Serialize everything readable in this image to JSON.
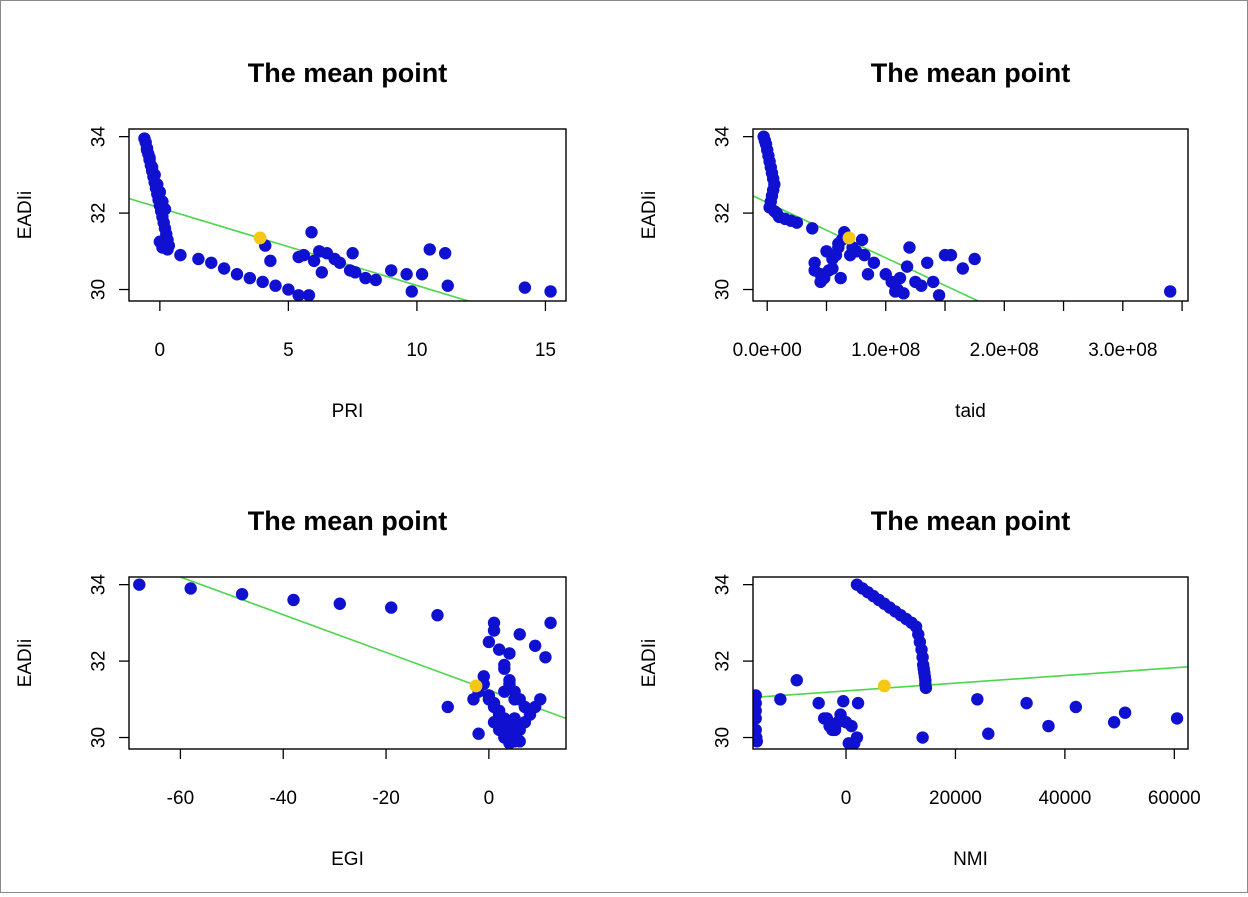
{
  "colors": {
    "points": "#1010d0",
    "mean": "#f5c814",
    "fit": "#4cd64c",
    "axis": "#000000"
  },
  "chart_data": [
    {
      "type": "scatter",
      "title": "The mean point",
      "xlabel": "PRI",
      "ylabel": "EADIi",
      "xlim": [
        -1.2,
        15.8
      ],
      "ylim": [
        29.7,
        34.2
      ],
      "xticks": [
        0,
        5,
        10,
        15
      ],
      "xtick_labels": [
        "0",
        "5",
        "10",
        "15"
      ],
      "yticks": [
        30,
        32,
        34
      ],
      "ytick_labels": [
        "30",
        "32",
        "34"
      ],
      "mean_point": [
        3.9,
        31.35
      ],
      "fit_line": [
        [
          -1.2,
          32.38
        ],
        [
          12.0,
          29.7
        ]
      ],
      "x": [
        -0.6,
        -0.55,
        -0.5,
        -0.45,
        -0.4,
        -0.35,
        -0.3,
        -0.25,
        -0.2,
        -0.15,
        -0.1,
        -0.05,
        0.0,
        0.05,
        0.1,
        0.15,
        0.2,
        0.25,
        0.3,
        0.35,
        -0.5,
        -0.4,
        -0.3,
        -0.2,
        -0.1,
        0.0,
        0.1,
        0.2,
        0.0,
        0.1,
        0.3,
        0.8,
        1.5,
        2.0,
        2.5,
        3.0,
        3.5,
        4.0,
        4.5,
        5.0,
        5.4,
        5.8,
        5.4,
        5.6,
        5.9,
        6.2,
        6.5,
        6.8,
        7.0,
        7.4,
        7.6,
        8.0,
        8.4,
        7.5,
        9.0,
        9.6,
        9.8,
        10.2,
        10.5,
        11.1,
        11.2,
        14.2,
        15.2,
        4.1,
        4.3,
        6.3,
        6.0
      ],
      "y": [
        33.95,
        33.85,
        33.7,
        33.55,
        33.4,
        33.25,
        33.1,
        32.95,
        32.8,
        32.65,
        32.5,
        32.35,
        32.2,
        32.05,
        31.9,
        31.75,
        31.6,
        31.45,
        31.3,
        31.15,
        33.65,
        33.45,
        33.2,
        33.0,
        32.75,
        32.55,
        32.3,
        32.1,
        31.25,
        31.1,
        31.05,
        30.9,
        30.8,
        30.7,
        30.55,
        30.4,
        30.3,
        30.2,
        30.1,
        30.0,
        29.85,
        29.85,
        30.85,
        30.9,
        31.5,
        31.0,
        30.95,
        30.8,
        30.7,
        30.5,
        30.45,
        30.3,
        30.25,
        30.95,
        30.5,
        30.4,
        29.95,
        30.4,
        31.05,
        30.95,
        30.1,
        30.05,
        29.95,
        31.15,
        30.75,
        30.45,
        30.75
      ]
    },
    {
      "type": "scatter",
      "title": "The mean point",
      "xlabel": "taid",
      "ylabel": "EADIi",
      "xlim": [
        -12000000,
        355000000
      ],
      "ylim": [
        29.7,
        34.2
      ],
      "xticks": [
        0,
        50000000,
        100000000,
        150000000,
        200000000,
        250000000,
        300000000,
        350000000
      ],
      "xtick_labels": [
        "0.0e+00",
        "",
        "1.0e+08",
        "",
        "2.0e+08",
        "",
        "3.0e+08",
        ""
      ],
      "yticks": [
        30,
        32,
        34
      ],
      "ytick_labels": [
        "30",
        "32",
        "34"
      ],
      "mean_point": [
        69000000,
        31.35
      ],
      "fit_line": [
        [
          -12000000,
          32.45
        ],
        [
          178000000,
          29.7
        ]
      ],
      "x": [
        -3000000,
        -2000000,
        -1000000,
        0,
        1000000,
        2000000,
        3000000,
        4000000,
        5000000,
        6000000,
        5000000,
        4000000,
        3000000,
        2000000,
        6000000,
        8000000,
        10000000,
        15000000,
        20000000,
        25000000,
        38000000,
        40000000,
        45000000,
        48000000,
        52000000,
        55000000,
        58000000,
        60000000,
        62000000,
        63000000,
        65000000,
        70000000,
        72000000,
        75000000,
        80000000,
        82000000,
        85000000,
        90000000,
        100000000,
        105000000,
        108000000,
        110000000,
        112000000,
        115000000,
        118000000,
        120000000,
        125000000,
        130000000,
        135000000,
        140000000,
        145000000,
        150000000,
        155000000,
        165000000,
        175000000,
        340000000,
        40000000,
        45000000,
        50000000,
        55000000,
        60000000
      ],
      "y": [
        34.0,
        33.9,
        33.8,
        33.65,
        33.5,
        33.35,
        33.2,
        33.05,
        32.9,
        32.75,
        32.6,
        32.45,
        32.3,
        32.15,
        32.05,
        32.0,
        31.9,
        31.85,
        31.8,
        31.75,
        31.6,
        30.5,
        30.4,
        30.3,
        30.5,
        30.55,
        30.9,
        31.2,
        30.3,
        31.3,
        31.5,
        30.9,
        31.1,
        31.0,
        31.3,
        30.9,
        30.4,
        30.7,
        30.4,
        30.2,
        29.95,
        30.0,
        30.3,
        29.9,
        30.6,
        31.1,
        30.2,
        30.1,
        30.7,
        30.2,
        29.85,
        30.9,
        30.9,
        30.55,
        30.8,
        29.95,
        30.7,
        30.2,
        31.0,
        30.8,
        31.1
      ]
    },
    {
      "type": "scatter",
      "title": "The mean point",
      "xlabel": "EGI",
      "ylabel": "EADIi",
      "xlim": [
        -70,
        15
      ],
      "ylim": [
        29.7,
        34.2
      ],
      "xticks": [
        -60,
        -40,
        -20,
        0
      ],
      "xtick_labels": [
        "-60",
        "-40",
        "-20",
        "0"
      ],
      "yticks": [
        30,
        32,
        34
      ],
      "ytick_labels": [
        "30",
        "32",
        "34"
      ],
      "mean_point": [
        -2.5,
        31.35
      ],
      "fit_line": [
        [
          -60,
          34.2
        ],
        [
          15,
          30.5
        ]
      ],
      "x": [
        -68,
        -58,
        -48,
        -38,
        -29,
        -19,
        -10,
        -8,
        -3,
        -2,
        -1,
        0,
        1,
        2,
        3,
        4,
        5,
        6,
        7,
        8,
        9,
        10,
        11,
        12,
        -1,
        0,
        1,
        2,
        3,
        4,
        5,
        6,
        0,
        1,
        2,
        3,
        4,
        5,
        6,
        1,
        2,
        3,
        4,
        5,
        6,
        7,
        3,
        4,
        5,
        2,
        3,
        4,
        5,
        3,
        4,
        -2,
        1,
        6,
        9
      ],
      "y": [
        34.0,
        33.9,
        33.75,
        33.6,
        33.5,
        33.4,
        33.2,
        30.8,
        31.0,
        31.2,
        31.4,
        31.1,
        30.9,
        30.7,
        30.5,
        30.3,
        30.1,
        30.2,
        30.4,
        30.6,
        30.8,
        31.0,
        32.1,
        33.0,
        31.6,
        31.0,
        30.8,
        30.6,
        30.4,
        30.2,
        30.0,
        29.9,
        32.5,
        32.8,
        32.3,
        31.9,
        31.5,
        31.2,
        31.0,
        30.4,
        30.2,
        30.0,
        29.85,
        29.9,
        30.3,
        30.8,
        31.8,
        31.4,
        31.0,
        30.6,
        30.3,
        30.0,
        30.5,
        31.2,
        32.2,
        30.1,
        33.0,
        32.7,
        32.4
      ]
    },
    {
      "type": "scatter",
      "title": "The mean point",
      "xlabel": "NMI",
      "ylabel": "EADIi",
      "xlim": [
        -17000,
        62500
      ],
      "ylim": [
        29.7,
        34.2
      ],
      "xticks": [
        0,
        20000,
        40000,
        60000
      ],
      "xtick_labels": [
        "0",
        "20000",
        "40000",
        "60000"
      ],
      "yticks": [
        30,
        32,
        34
      ],
      "ytick_labels": [
        "30",
        "32",
        "34"
      ],
      "mean_point": [
        7000,
        31.35
      ],
      "fit_line": [
        [
          -17000,
          31.05
        ],
        [
          62500,
          31.85
        ]
      ],
      "x": [
        2000,
        3000,
        4000,
        5000,
        6000,
        7000,
        8000,
        9000,
        10000,
        11000,
        12000,
        12800,
        13200,
        13500,
        13800,
        14000,
        14100,
        14200,
        14300,
        14400,
        14500,
        14500,
        14600,
        -16500,
        -16500,
        -16500,
        -16500,
        -16500,
        -16400,
        -16300,
        -12000,
        -9000,
        -5000,
        -4000,
        -3000,
        -2000,
        -1000,
        0,
        1000,
        2000,
        -3500,
        -2500,
        -1500,
        500,
        1500,
        14000,
        24000,
        26000,
        33000,
        37000,
        42000,
        49000,
        51000,
        60500,
        -500,
        2200
      ],
      "y": [
        34.0,
        33.9,
        33.8,
        33.7,
        33.6,
        33.5,
        33.4,
        33.3,
        33.2,
        33.1,
        33.0,
        32.9,
        32.7,
        32.5,
        32.3,
        32.1,
        31.9,
        31.8,
        31.7,
        31.6,
        31.5,
        31.4,
        31.3,
        31.1,
        30.9,
        30.7,
        30.5,
        30.2,
        30.0,
        29.9,
        31.0,
        31.5,
        30.9,
        30.5,
        30.3,
        30.2,
        30.6,
        30.4,
        30.3,
        30.0,
        30.5,
        30.2,
        30.4,
        29.85,
        29.85,
        30.0,
        31.0,
        30.1,
        30.9,
        30.3,
        30.8,
        30.4,
        30.65,
        30.5,
        30.95,
        30.9
      ]
    }
  ]
}
